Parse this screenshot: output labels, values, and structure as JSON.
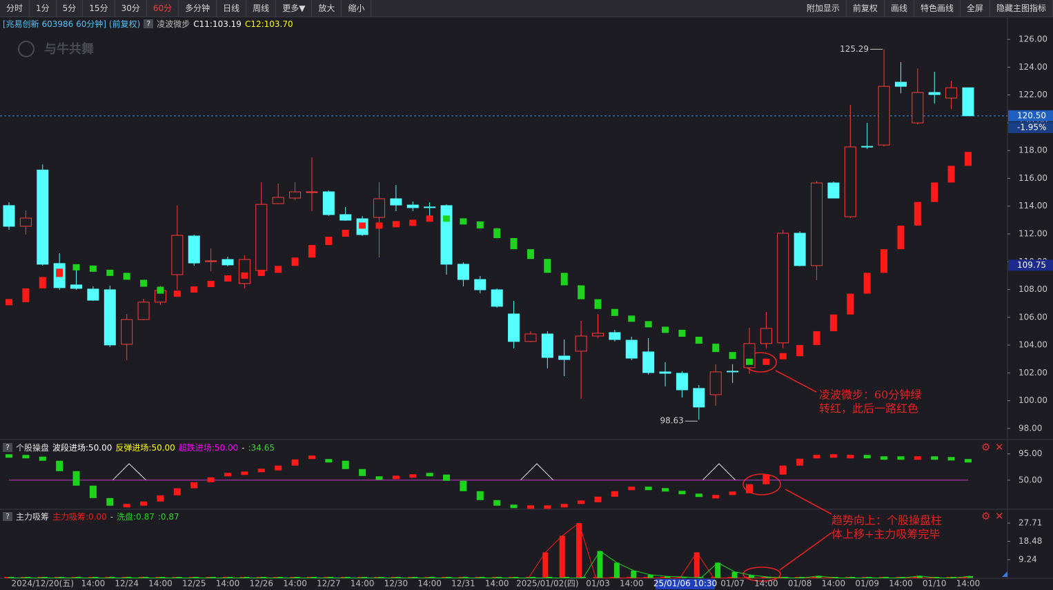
{
  "toolbar": {
    "left": [
      {
        "label": "分时"
      },
      {
        "label": "1分"
      },
      {
        "label": "5分"
      },
      {
        "label": "15分"
      },
      {
        "label": "30分"
      },
      {
        "label": "60分",
        "active": true
      },
      {
        "label": "多分钟"
      },
      {
        "label": "日线"
      },
      {
        "label": "周线"
      },
      {
        "label": "更多▼"
      },
      {
        "label": "放大"
      },
      {
        "label": "缩小"
      }
    ],
    "right": [
      {
        "label": "附加显示"
      },
      {
        "label": "前复权"
      },
      {
        "label": "画线"
      },
      {
        "label": "特色画线"
      },
      {
        "label": "全屏"
      },
      {
        "label": "隐藏主图指标"
      }
    ]
  },
  "chart_data": [
    {
      "type": "candlestick",
      "title": "[兆易创新 603986 60分钟] (前复权)",
      "help_icon": "?",
      "watermark": "与牛共舞",
      "indicator": {
        "name": "凌波微步",
        "labels": [
          "C11:103.19",
          "C12:103.70"
        ],
        "values": [
          107.09,
          108.08,
          108.9,
          109.5,
          109.6,
          109.5,
          109.2,
          108.7,
          108.2,
          107.7,
          107.7,
          108.0,
          108.4,
          108.8,
          109.0,
          109.2,
          109.7,
          110.3,
          111.2,
          111.8,
          112.3,
          112.6,
          112.6,
          112.7,
          112.8,
          113.1,
          113.1,
          112.9,
          112.4,
          111.7,
          110.9,
          110.2,
          109.2,
          108.3,
          107.3,
          106.6,
          106.1,
          105.9,
          105.5,
          105.1,
          104.6,
          104.1,
          103.5,
          103.0,
          102.8,
          102.8,
          103.2,
          104.0,
          105.0,
          106.2,
          107.7,
          109.2,
          110.9,
          112.6,
          114.3,
          115.7,
          116.9,
          117.9
        ],
        "point_colors": [
          "#ff1a1a",
          "#ff1a1a",
          "#ff1a1a",
          "#ff1a1a",
          "#1ed21e",
          "#1ed21e",
          "#1ed21e",
          "#1ed21e",
          "#1ed21e",
          "#1ed21e",
          "#ff1a1a",
          "#ff1a1a",
          "#ff1a1a",
          "#ff1a1a",
          "#ff1a1a",
          "#ff1a1a",
          "#ff1a1a",
          "#ff1a1a",
          "#ff1a1a",
          "#ff1a1a",
          "#ff1a1a",
          "#ff1a1a",
          "#ff1a1a",
          "#ff1a1a",
          "#ff1a1a",
          "#ff1a1a",
          "#1ed21e",
          "#1ed21e",
          "#1ed21e",
          "#1ed21e",
          "#1ed21e",
          "#1ed21e",
          "#1ed21e",
          "#1ed21e",
          "#1ed21e",
          "#1ed21e",
          "#1ed21e",
          "#1ed21e",
          "#1ed21e",
          "#1ed21e",
          "#1ed21e",
          "#1ed21e",
          "#1ed21e",
          "#1ed21e",
          "#1ed21e",
          "#ff1a1a",
          "#ff1a1a",
          "#ff1a1a",
          "#ff1a1a",
          "#ff1a1a",
          "#ff1a1a",
          "#ff1a1a",
          "#ff1a1a",
          "#ff1a1a",
          "#ff1a1a",
          "#ff1a1a",
          "#ff1a1a",
          "#ff1a1a"
        ]
      },
      "categories": [
        null,
        null,
        "2024/12/20(五)",
        null,
        null,
        "14:00",
        null,
        "12/24",
        null,
        "14:00",
        null,
        "12/25",
        null,
        "14:00",
        null,
        "12/26",
        null,
        "14:00",
        null,
        "12/27",
        null,
        "14:00",
        null,
        "12/30",
        null,
        "14:00",
        null,
        "12/31",
        null,
        "14:00",
        null,
        null,
        "2025/01/02(四)",
        null,
        null,
        "01/03",
        null,
        "14:00",
        null,
        null,
        null,
        null,
        null,
        "01/07",
        null,
        "14:00",
        null,
        "01/08",
        null,
        "14:00",
        null,
        "01/09",
        null,
        "14:00",
        null,
        "01/10",
        null,
        "14:00"
      ],
      "open": [
        114.04,
        112.55,
        116.6,
        109.87,
        108.33,
        108.03,
        107.98,
        104.06,
        105.84,
        107.09,
        109.07,
        111.85,
        110.01,
        110.16,
        108.43,
        109.37,
        114.18,
        114.58,
        115.0,
        115.03,
        113.39,
        113.09,
        113.19,
        114.53,
        114.08,
        113.94,
        114.04,
        109.82,
        108.72,
        107.98,
        106.24,
        104.26,
        104.8,
        103.21,
        103.56,
        104.65,
        104.9,
        104.35,
        103.51,
        102.07,
        101.97,
        100.88,
        100.43,
        102.12,
        102.37,
        104.11,
        104.16,
        112.05,
        109.72,
        115.67,
        113.24,
        118.3,
        118.4,
        122.92,
        119.99,
        122.18,
        121.78,
        122.52
      ],
      "high": [
        114.28,
        113.69,
        117.0,
        110.61,
        109.72,
        108.23,
        108.28,
        106.24,
        107.33,
        108.28,
        114.04,
        111.95,
        110.96,
        110.36,
        110.46,
        115.72,
        115.62,
        115.72,
        117.5,
        115.13,
        113.94,
        113.29,
        115.72,
        115.52,
        114.33,
        114.28,
        114.13,
        109.96,
        108.97,
        108.08,
        107.18,
        105.0,
        105.0,
        104.4,
        105.74,
        106.24,
        105.1,
        104.6,
        104.5,
        102.77,
        102.12,
        101.13,
        102.62,
        102.62,
        105.25,
        106.39,
        112.3,
        112.2,
        115.82,
        115.77,
        121.28,
        119.99,
        125.29,
        124.36,
        123.91,
        123.67,
        123.02,
        122.52
      ],
      "low": [
        112.3,
        111.95,
        109.72,
        107.98,
        107.98,
        107.18,
        103.86,
        102.91,
        105.79,
        106.89,
        107.98,
        109.72,
        109.32,
        109.67,
        108.08,
        108.97,
        114.13,
        114.43,
        113.64,
        113.29,
        112.94,
        111.85,
        110.31,
        113.64,
        113.64,
        113.14,
        109.07,
        108.23,
        107.73,
        106.69,
        103.76,
        104.21,
        102.32,
        101.77,
        100.13,
        104.5,
        104.26,
        102.91,
        101.87,
        101.03,
        100.23,
        98.63,
        99.64,
        101.28,
        101.92,
        103.76,
        103.76,
        109.67,
        108.67,
        114.58,
        113.14,
        118.11,
        118.3,
        122.13,
        119.89,
        121.38,
        120.99,
        120.49
      ],
      "close": [
        112.55,
        113.14,
        109.82,
        108.13,
        108.08,
        107.23,
        104.01,
        105.84,
        107.09,
        107.93,
        111.9,
        109.91,
        110.06,
        109.77,
        110.16,
        114.13,
        114.63,
        115.03,
        115.03,
        113.39,
        112.99,
        111.95,
        114.53,
        114.08,
        113.89,
        113.89,
        109.82,
        108.72,
        107.98,
        106.79,
        104.26,
        104.8,
        103.11,
        102.96,
        104.65,
        104.85,
        104.4,
        103.06,
        102.02,
        101.97,
        100.78,
        99.54,
        102.07,
        102.07,
        104.11,
        105.2,
        112.05,
        109.72,
        115.67,
        114.58,
        118.26,
        118.26,
        122.62,
        122.62,
        122.18,
        122.03,
        122.52,
        120.5
      ],
      "up_color": "#ff3c3c",
      "down_color": "#54ffff",
      "ylim": [
        97.25,
        126.6
      ],
      "yticks": [
        {
          "value": 126,
          "label": "126.00"
        },
        {
          "value": 124,
          "label": "124.00"
        },
        {
          "value": 122,
          "label": "122.00"
        },
        {
          "value": 120,
          "label": "120.00"
        },
        {
          "value": 118,
          "label": "118.00"
        },
        {
          "value": 116,
          "label": "116.00"
        },
        {
          "value": 114,
          "label": "114.00"
        },
        {
          "value": 112,
          "label": "112.00"
        },
        {
          "value": 110,
          "label": "110.00"
        },
        {
          "value": 108,
          "label": "108.00"
        },
        {
          "value": 106,
          "label": "106.00"
        },
        {
          "value": 104,
          "label": "104.00"
        },
        {
          "value": 102,
          "label": "102.00"
        },
        {
          "value": 100,
          "label": "100.00"
        },
        {
          "value": 98,
          "label": "98.00"
        }
      ],
      "last_price": {
        "value": 120.5,
        "label": "120.50"
      },
      "change_label": "-1.95%",
      "cursor_price": {
        "value": 109.75,
        "label": "109.75"
      },
      "cursor_time": "25/01/06 10:30",
      "high_mark": 125.29,
      "low_mark": 98.63,
      "annotation": [
        "凌波微步：60分钟绿",
        "转红，此后一路红色"
      ]
    },
    {
      "type": "step",
      "title": "个股操盘",
      "help_icon": "?",
      "legend": [
        {
          "text": "波段进场:50.00",
          "color": "#ffffff"
        },
        {
          "text": "反弹进场:50.00",
          "color": "#ffff00"
        },
        {
          "text": "超跌进场:50.00",
          "color": "#ff00ff"
        },
        {
          "text": "-",
          "color": "#cccccc"
        },
        {
          "text": ":34.65",
          "color": "#3cd23c"
        }
      ],
      "values": [
        91.4,
        90.3,
        83.2,
        65.4,
        40.5,
        19.2,
        6.2,
        6.2,
        13.3,
        23.9,
        36.0,
        46.4,
        54.7,
        59.5,
        61.8,
        66.6,
        74.9,
        85.5,
        89.1,
        83.2,
        69.0,
        57.1,
        53.6,
        54.7,
        57.1,
        59.5,
        48.8,
        31.0,
        15.7,
        6.2,
        5.0,
        3.8,
        3.8,
        6.2,
        12.1,
        21.6,
        31.0,
        35.8,
        35.8,
        33.4,
        28.7,
        23.9,
        21.6,
        27.5,
        42.9,
        59.5,
        74.9,
        86.7,
        90.3,
        91.4,
        90.3,
        90.3,
        87.9,
        87.9,
        87.9,
        87.9,
        86.7,
        83.2
      ],
      "point_colors": [
        "#1ed21e",
        "#1ed21e",
        "#1ed21e",
        "#1ed21e",
        "#1ed21e",
        "#1ed21e",
        "#1ed21e",
        "#ff1a1a",
        "#ff1a1a",
        "#ff1a1a",
        "#ff1a1a",
        "#ff1a1a",
        "#ff1a1a",
        "#ff1a1a",
        "#ff1a1a",
        "#ff1a1a",
        "#ff1a1a",
        "#ff1a1a",
        "#ff1a1a",
        "#1ed21e",
        "#1ed21e",
        "#1ed21e",
        "#1ed21e",
        "#ff1a1a",
        "#ff1a1a",
        "#1ed21e",
        "#1ed21e",
        "#1ed21e",
        "#1ed21e",
        "#1ed21e",
        "#1ed21e",
        "#ff1a1a",
        "#ff1a1a",
        "#ff1a1a",
        "#ff1a1a",
        "#ff1a1a",
        "#ff1a1a",
        "#ff1a1a",
        "#1ed21e",
        "#1ed21e",
        "#1ed21e",
        "#1ed21e",
        "#ff1a1a",
        "#ff1a1a",
        "#ff1a1a",
        "#ff1a1a",
        "#ff1a1a",
        "#ff1a1a",
        "#ff1a1a",
        "#ff1a1a",
        "#ff1a1a",
        "#1ed21e",
        "#1ed21e",
        "#1ed21e",
        "#ff1a1a",
        "#1ed21e",
        "#1ed21e",
        "#1ed21e"
      ],
      "reference_line": 50,
      "reference_color": "#c03cc8",
      "ylim": [
        0,
        116
      ],
      "yticks": [
        {
          "value": 95,
          "label": "95.00"
        },
        {
          "value": 50,
          "label": "50.00"
        }
      ],
      "annotation": [
        "趋势向上：个股操盘柱",
        "体上移+主力吸筹完毕"
      ]
    },
    {
      "type": "bar",
      "title": "主力吸筹",
      "help_icon": "?",
      "series": [
        {
          "label": "主力吸筹:0.00",
          "color": "#ff1a1a",
          "values": [
            0,
            0,
            0,
            0,
            0,
            0,
            0,
            0,
            0,
            0,
            0,
            0,
            0,
            0,
            0,
            0,
            0,
            0,
            0,
            0,
            0,
            0,
            0,
            0,
            0,
            0,
            0,
            0,
            0,
            0,
            0,
            0,
            12.9,
            21.3,
            27.7,
            0,
            0,
            0,
            0,
            0,
            0,
            12.9,
            0,
            0,
            0,
            0,
            0,
            0,
            0,
            0,
            0,
            0,
            0,
            0,
            0,
            0,
            0,
            0
          ]
        },
        {
          "label": "洗盘:0.87",
          "color": "#1ed21e",
          "values": [
            0,
            0,
            0,
            0,
            0,
            0,
            0,
            0,
            0,
            0,
            0,
            0,
            0,
            0,
            0,
            0,
            0,
            0,
            0,
            0,
            0,
            0,
            0,
            0,
            0,
            0,
            0,
            0,
            0,
            0,
            0,
            0,
            0,
            0,
            0,
            13.6,
            7.7,
            3.7,
            1.6,
            0.8,
            0.5,
            0,
            7.7,
            3.1,
            1.4,
            0.5,
            0,
            0,
            1.0,
            0,
            0,
            0,
            0,
            0,
            1.0,
            0,
            0,
            0.87
          ]
        }
      ],
      "extra_legend": [
        {
          "text": "-",
          "color": "#cccccc"
        },
        {
          "text": ":0.87",
          "color": "#3cd23c"
        }
      ],
      "ylim": [
        0,
        34
      ],
      "yticks": [
        27.71,
        18.48,
        9.24
      ]
    }
  ]
}
